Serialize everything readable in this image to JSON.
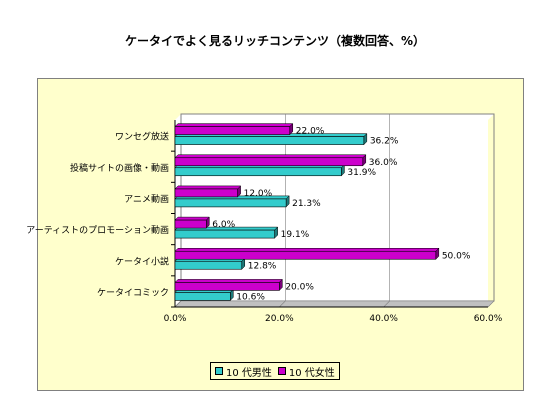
{
  "chart_data": {
    "type": "bar",
    "orientation": "horizontal",
    "title": "ケータイでよく見るリッチコンテンツ（複数回答、%）",
    "categories": [
      "ワンセグ放送",
      "投稿サイトの画像・動画",
      "アニメ動画",
      "アーティストのプロモーション動画",
      "ケータイ小説",
      "ケータイコミック"
    ],
    "series": [
      {
        "name": "10 代男性",
        "color": "#33cccc",
        "values": [
          36.2,
          31.9,
          21.3,
          19.1,
          12.8,
          10.6
        ],
        "labels": [
          "36.2%",
          "31.9%",
          "21.3%",
          "19.1%",
          "12.8%",
          "10.6%"
        ]
      },
      {
        "name": "10 代女性",
        "color": "#cc00cc",
        "values": [
          22.0,
          36.0,
          12.0,
          6.0,
          50.0,
          20.0
        ],
        "labels": [
          "22.0%",
          "36.0%",
          "12.0%",
          "6.0%",
          "50.0%",
          "20.0%"
        ]
      }
    ],
    "xlim": [
      0,
      60
    ],
    "xticks": [
      0,
      20,
      40,
      60
    ],
    "xtick_labels": [
      "0.0%",
      "20.0%",
      "40.0%",
      "60.0%"
    ],
    "legend_position": "bottom",
    "plot_background": "#ffffcc"
  }
}
